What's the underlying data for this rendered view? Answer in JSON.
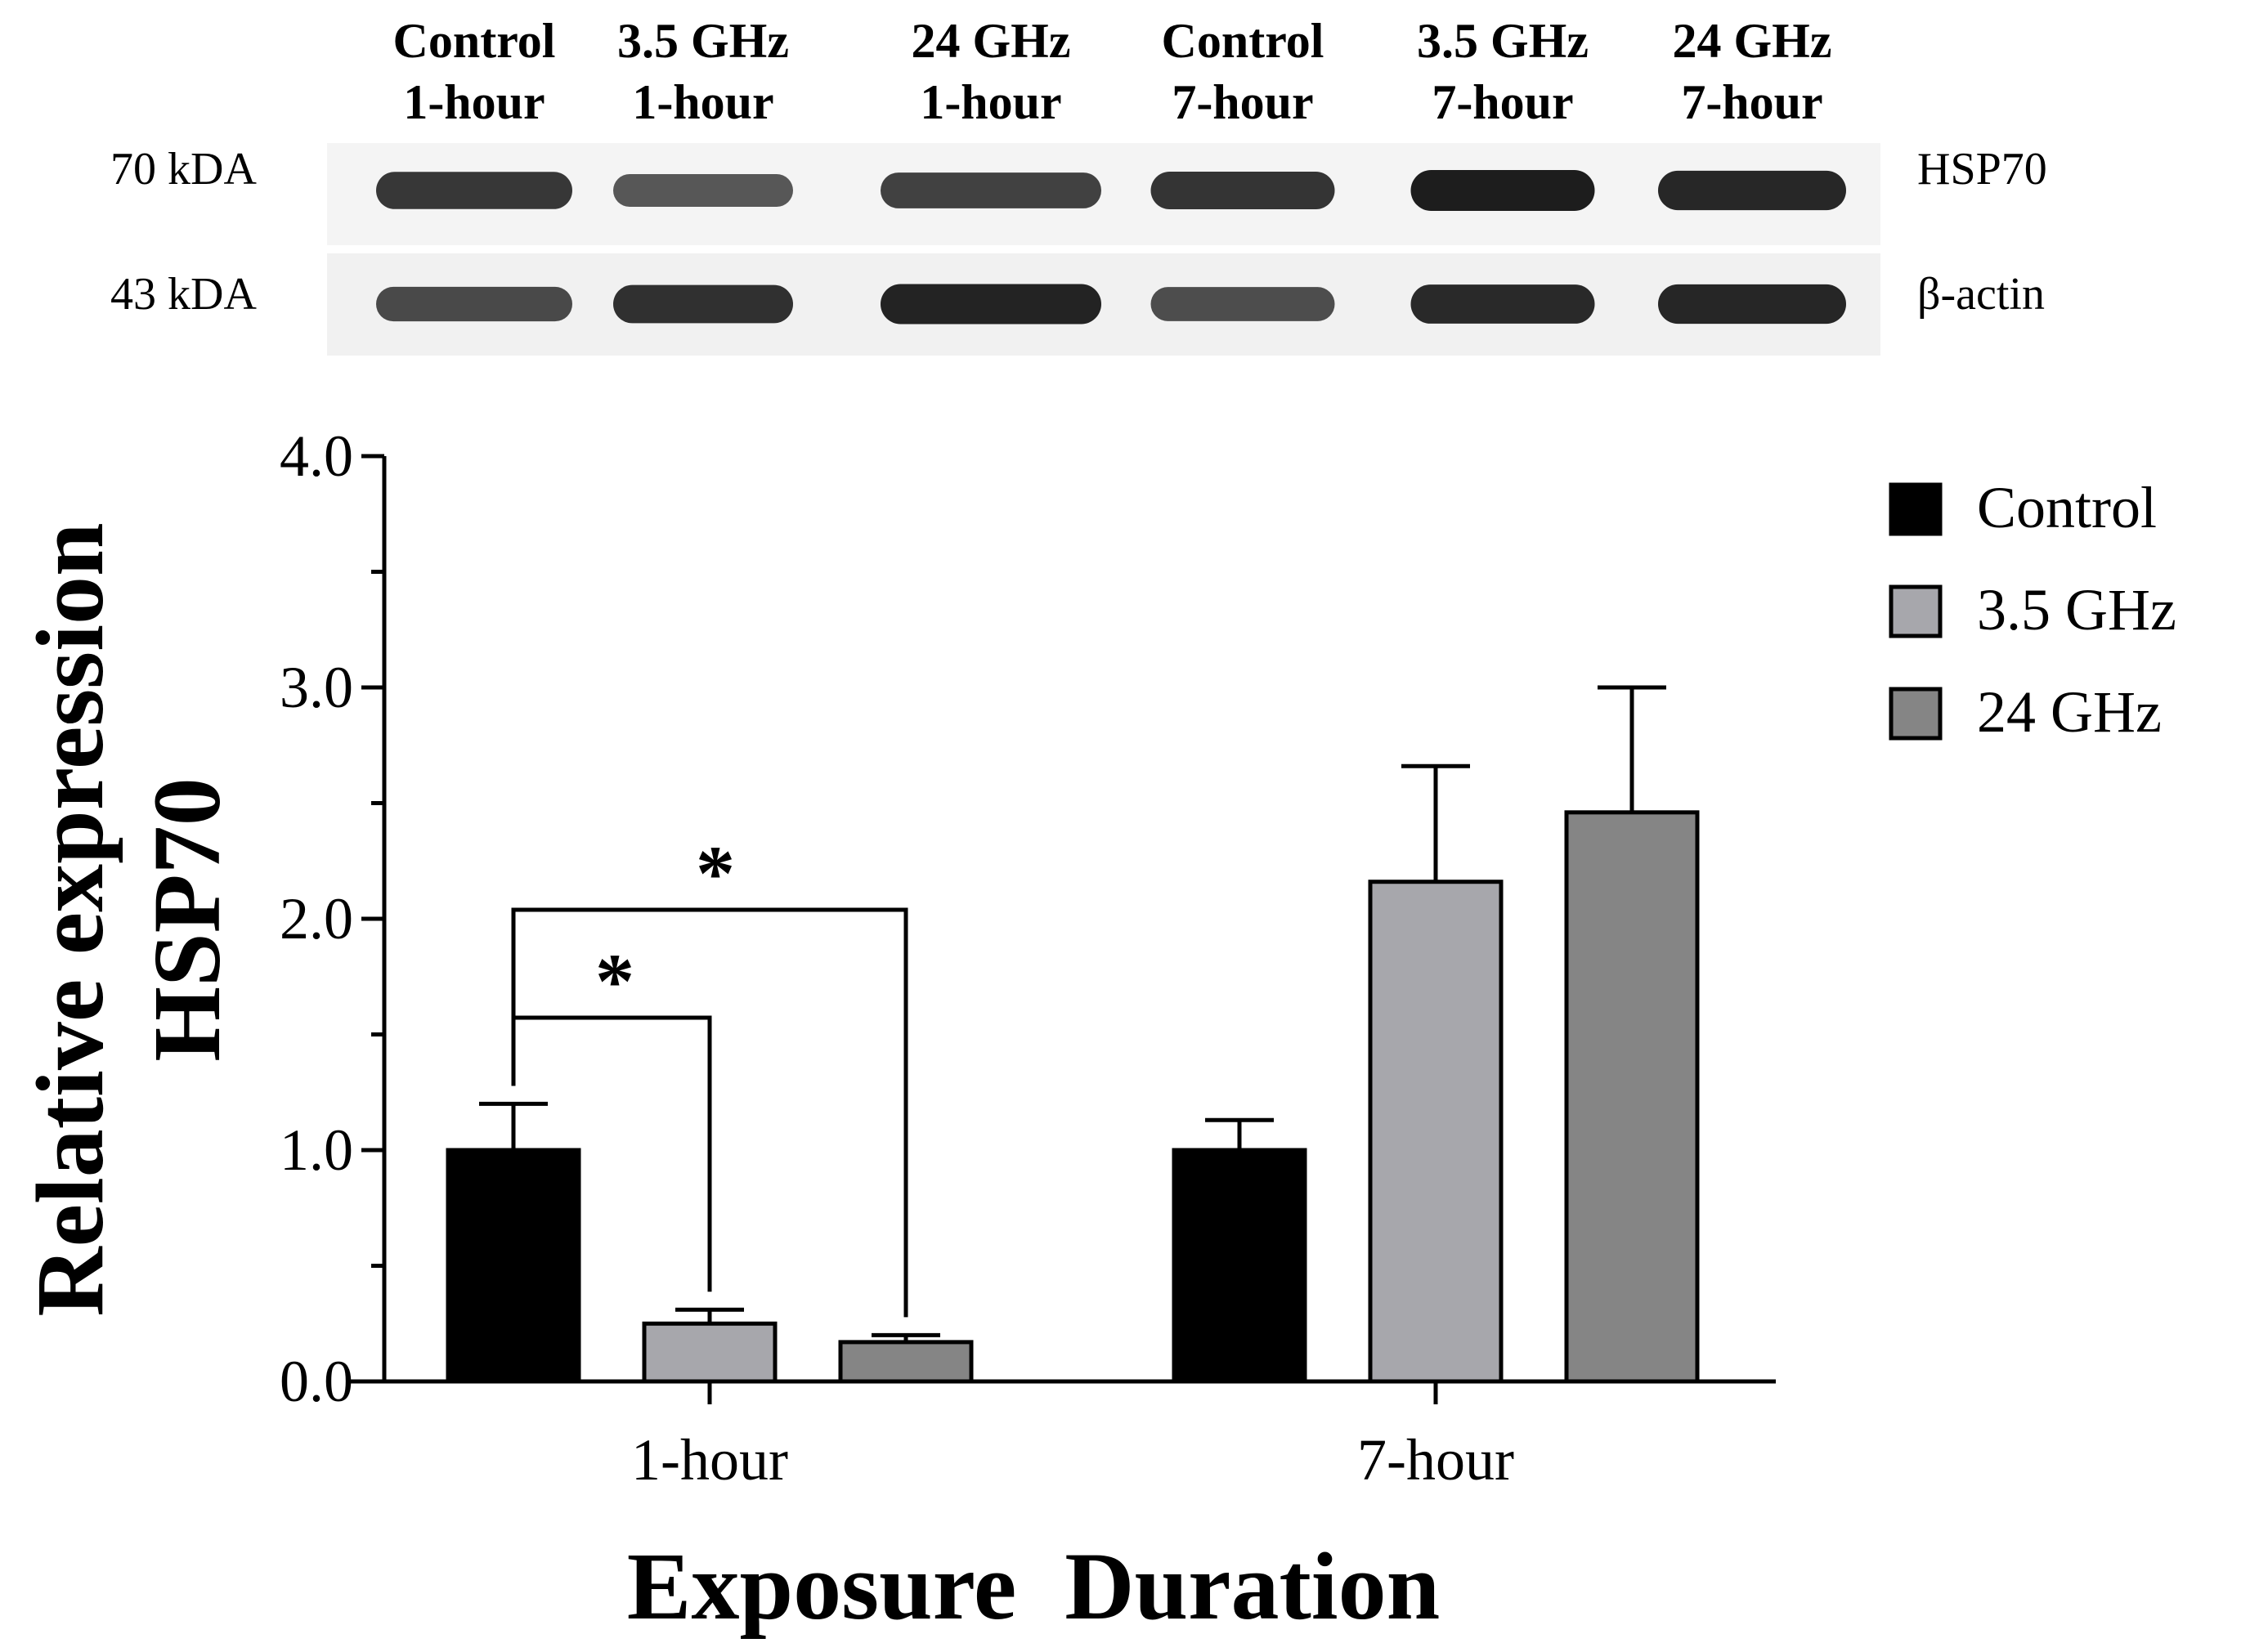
{
  "blot": {
    "lanes": [
      {
        "line1": "Control",
        "line2": "1-hour"
      },
      {
        "line1": "3.5 GHz",
        "line2": "1-hour"
      },
      {
        "line1": "24 GHz",
        "line2": "1-hour"
      },
      {
        "line1": "Control",
        "line2": "7-hour"
      },
      {
        "line1": "3.5 GHz",
        "line2": "7-hour"
      },
      {
        "line1": "24 GHz",
        "line2": "7-hour"
      }
    ],
    "rows": [
      {
        "mw": "70 kDA",
        "protein": "HSP70",
        "intensity": [
          0.8,
          0.55,
          0.72,
          0.82,
          1.0,
          0.92
        ]
      },
      {
        "mw": "43 kDA",
        "protein": "β-actin",
        "intensity": [
          0.65,
          0.85,
          0.95,
          0.62,
          0.9,
          0.92
        ]
      }
    ]
  },
  "chart_data": {
    "type": "bar",
    "categories": [
      "1-hour",
      "7-hour"
    ],
    "series": [
      {
        "name": "Control",
        "color": "#000000",
        "values": [
          1.0,
          1.0
        ],
        "errors": [
          0.2,
          0.13
        ]
      },
      {
        "name": "3.5 GHz",
        "color": "#a7a7ac",
        "values": [
          0.25,
          2.16
        ],
        "errors": [
          0.06,
          0.5
        ]
      },
      {
        "name": "24 GHz",
        "color": "#858585",
        "values": [
          0.17,
          2.46
        ],
        "errors": [
          0.03,
          0.54
        ]
      }
    ],
    "xlabel": "Exposure  Duration",
    "ylabel_line1": "Relative expression",
    "ylabel_line2": "HSP70",
    "ylim": [
      0,
      4.0
    ],
    "yticks": [
      "0.0",
      "1.0",
      "2.0",
      "3.0",
      "4.0"
    ],
    "legend_position": "top-right",
    "annotations": [
      {
        "label": "*",
        "from": "Control",
        "to": "3.5 GHz",
        "category": "1-hour"
      },
      {
        "label": "*",
        "from": "Control",
        "to": "24 GHz",
        "category": "1-hour"
      }
    ]
  }
}
